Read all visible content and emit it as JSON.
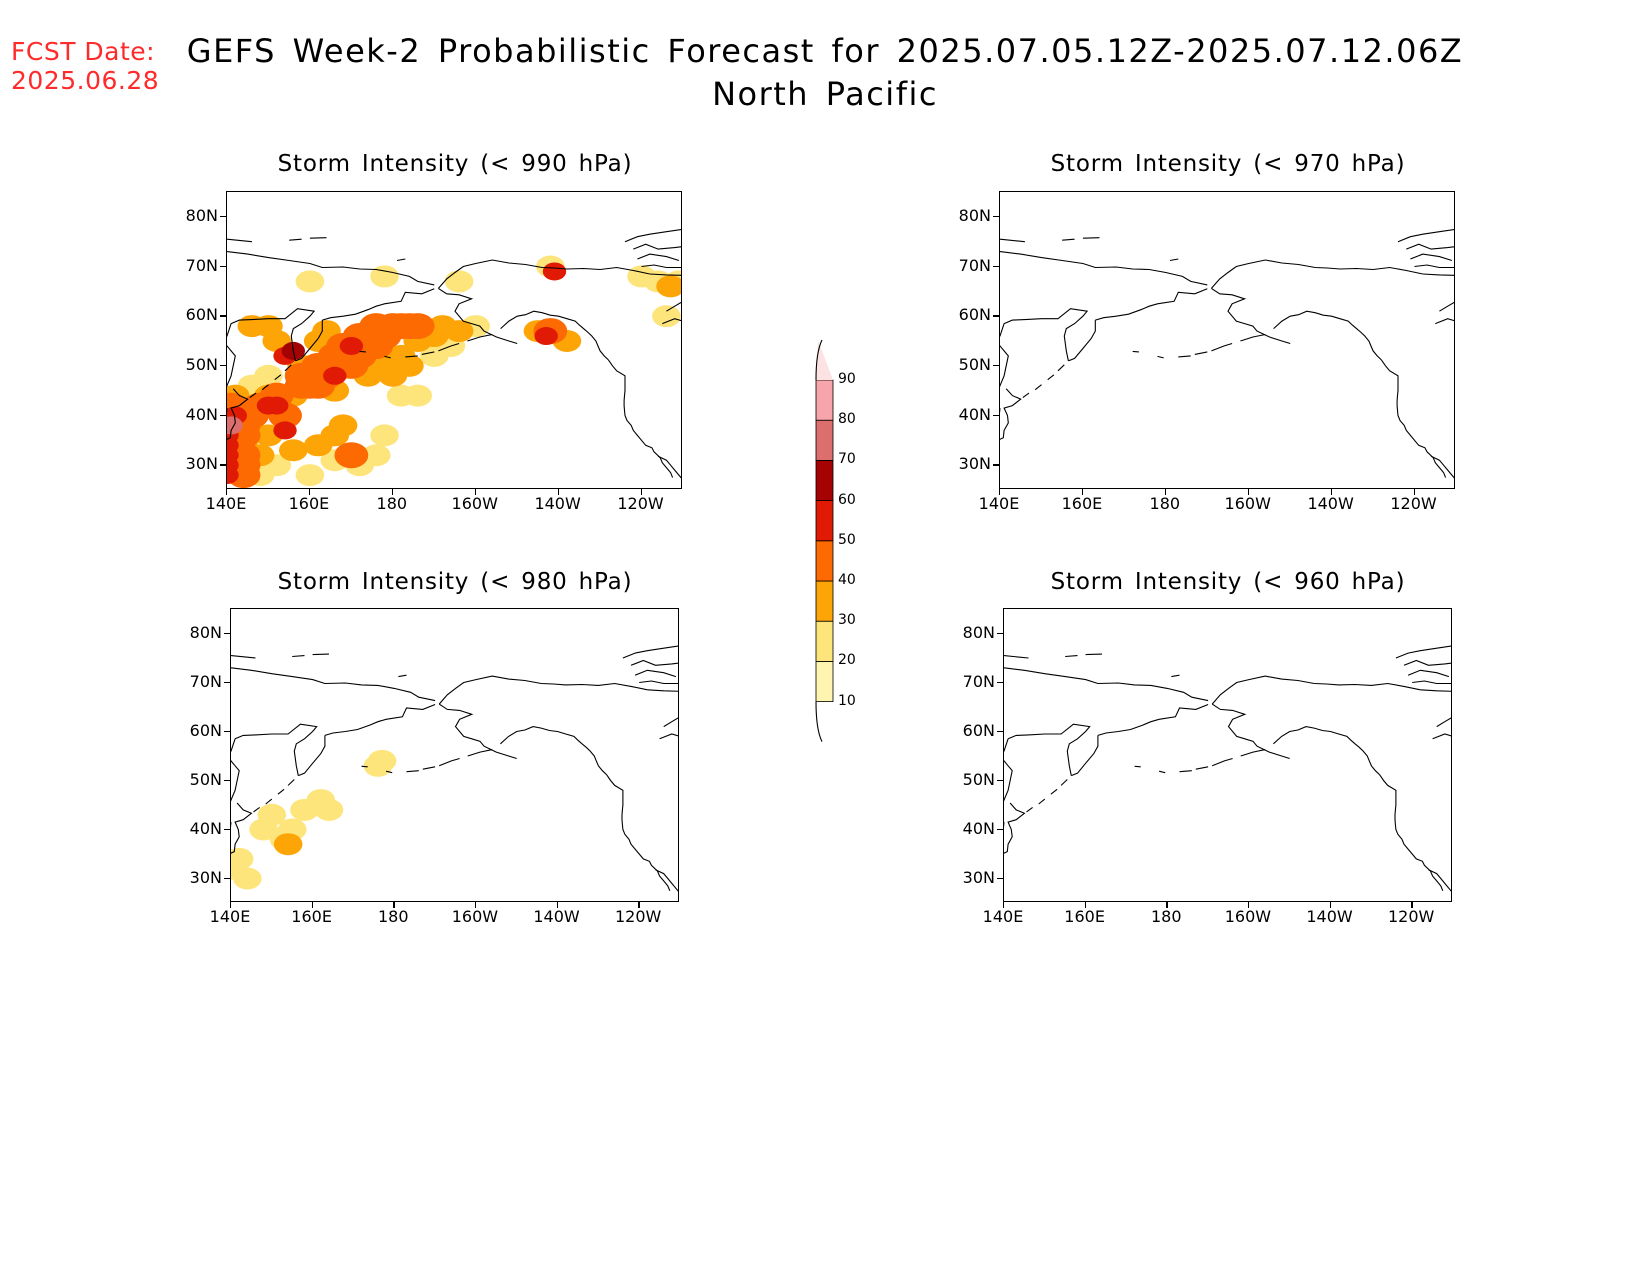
{
  "forecast_date": {
    "label": "FCST Date:",
    "value": "2025.06.28"
  },
  "title": {
    "line1": "GEFS Week-2 Probabilistic Forecast for 2025.07.05.12Z-2025.07.12.06Z",
    "line2": "North Pacific"
  },
  "axes": {
    "lon_ticks": [
      "140E",
      "160E",
      "180",
      "160W",
      "140W",
      "120W"
    ],
    "lat_ticks": [
      "80N",
      "70N",
      "60N",
      "50N",
      "40N",
      "30N"
    ]
  },
  "panels": [
    {
      "id": "p990",
      "title": "Storm Intensity (< 990 hPa)"
    },
    {
      "id": "p970",
      "title": "Storm Intensity (< 970 hPa)"
    },
    {
      "id": "p980",
      "title": "Storm Intensity (< 980 hPa)"
    },
    {
      "id": "p960",
      "title": "Storm Intensity (< 960 hPa)"
    }
  ],
  "colorbar": {
    "levels": [
      "10",
      "20",
      "30",
      "40",
      "50",
      "60",
      "70",
      "80",
      "90"
    ],
    "colors": [
      "#fff5b0",
      "#fde57c",
      "#fda507",
      "#fd6a02",
      "#e01a04",
      "#a50204",
      "#dc6f6d",
      "#f6a6aa",
      "#fde2e4"
    ]
  }
}
